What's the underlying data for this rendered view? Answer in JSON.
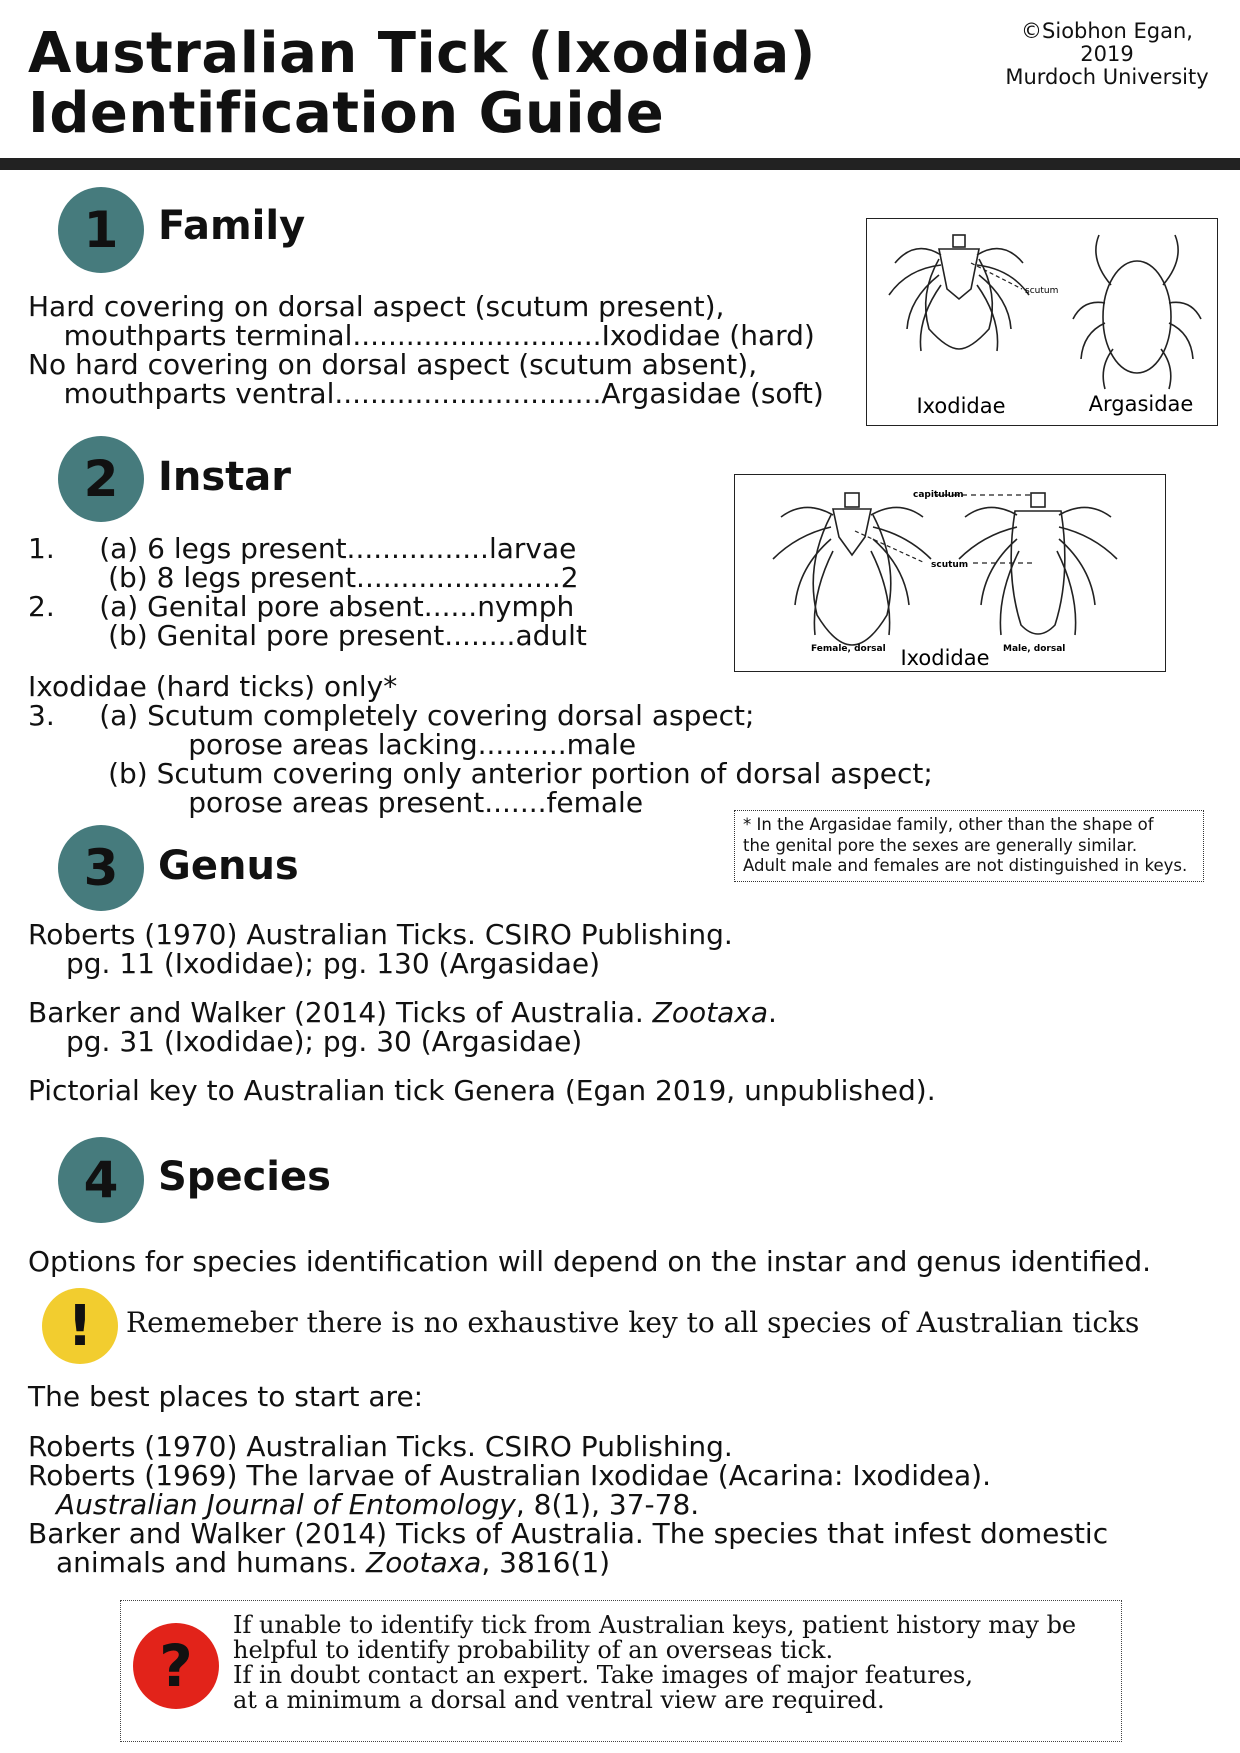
{
  "title": {
    "line1": "Australian Tick (Ixodida)",
    "line2": "Identification Guide"
  },
  "copyright": {
    "line1": "©Siobhon Egan, 2019",
    "line2": "Murdoch University"
  },
  "section1": {
    "number": "1",
    "title": "Family",
    "lines": [
      "Hard covering on dorsal aspect (scutum present),",
      "    mouthparts terminal............................Ixodidae (hard)",
      "No hard covering on dorsal aspect (scutum absent),",
      "    mouthparts ventral..............................Argasidae (soft)"
    ],
    "figure": {
      "label_left": "Ixodidae",
      "label_right": "Argasidae",
      "label_scutum": "scutum"
    }
  },
  "section2": {
    "number": "2",
    "title": "Instar",
    "key_lines": [
      "1.     (a) 6 legs present................larvae",
      "         (b) 8 legs present.......................2",
      "2.     (a) Genital pore absent......nymph",
      "         (b) Genital pore present........adult"
    ],
    "ixodid_lines": [
      "Ixodidae (hard ticks) only*",
      "3.     (a) Scutum completely covering dorsal aspect;",
      "                  porose areas lacking..........male",
      "         (b) Scutum covering only anterior portion of dorsal aspect;",
      "                  porose areas present.......female"
    ],
    "figure": {
      "caption": "Ixodidae",
      "label_female": "Female, dorsal",
      "label_male": "Male, dorsal",
      "label_capitulum": "capitulum",
      "label_scutum": "scutum"
    },
    "footnote": [
      "* In the Argasidae family, other than the shape of",
      "the genital pore the sexes are generally similar.",
      "Adult male and females are not distinguished in keys."
    ]
  },
  "section3": {
    "number": "3",
    "title": "Genus",
    "ref1_line1": "Roberts (1970) Australian Ticks. CSIRO Publishing.",
    "ref1_line2": "pg. 11 (Ixodidae); pg. 130 (Argasidae)",
    "ref2_pre": "Barker and Walker (2014) Ticks of Australia. ",
    "ref2_journal": "Zootaxa",
    "ref2_post": ".",
    "ref2_line2": "pg. 31 (Ixodidae); pg. 30 (Argasidae)",
    "ref3": "Pictorial key to Australian tick Genera (Egan 2019, unpublished)."
  },
  "section4": {
    "number": "4",
    "title": "Species",
    "intro": "Options for species identification will depend on the instar and genus identified.",
    "warning_icon": "!",
    "warning": "Rememeber there is no exhaustive key to all species of Australian ticks",
    "best": "The best places to start are:",
    "ref1": "Roberts (1970) Australian Ticks. CSIRO Publishing.",
    "ref2_line1": "Roberts (1969) The larvae of Australian Ixodidae (Acarina: Ixodidea).",
    "ref2_journal": "Australian Journal of Entomology",
    "ref2_post": ", 8(1), 37-78.",
    "ref3_line1": "Barker and Walker (2014) Ticks of Australia. The species that infest domestic",
    "ref3_pre": "animals and humans. ",
    "ref3_journal": "Zootaxa",
    "ref3_post": ", 3816(1)"
  },
  "help": {
    "icon": "?",
    "lines": [
      "If unable to identify tick from Australian keys, patient history may be",
      "helpful to identify probability of an overseas tick.",
      "If in doubt contact an expert. Take images of major features,",
      "at a minimum a dorsal and ventral view are required."
    ]
  },
  "colors": {
    "section_circle": "#467b7d",
    "warning_icon": "#f2cd2f",
    "help_icon": "#e2231a",
    "header_rule": "#222222"
  }
}
